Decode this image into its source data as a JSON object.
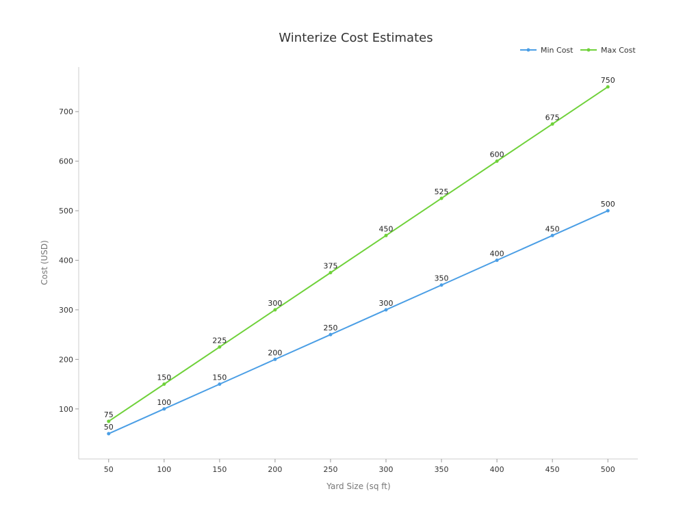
{
  "chart_data": {
    "type": "line",
    "title": "Winterize Cost Estimates",
    "xlabel": "Yard Size (sq ft)",
    "ylabel": "Cost (USD)",
    "x": [
      50,
      100,
      150,
      200,
      250,
      300,
      350,
      400,
      450,
      500
    ],
    "xlim": [
      23,
      527
    ],
    "ylim": [
      -1,
      790
    ],
    "yticks": [
      100,
      200,
      300,
      400,
      500,
      600,
      700
    ],
    "grid": false,
    "legend_position": "top-right",
    "series": [
      {
        "name": "Min Cost",
        "color": "#4a9ee5",
        "values": [
          50,
          100,
          150,
          200,
          250,
          300,
          350,
          400,
          450,
          500
        ]
      },
      {
        "name": "Max Cost",
        "color": "#6fd13a",
        "values": [
          75,
          150,
          225,
          300,
          375,
          450,
          525,
          600,
          675,
          750
        ]
      }
    ]
  }
}
